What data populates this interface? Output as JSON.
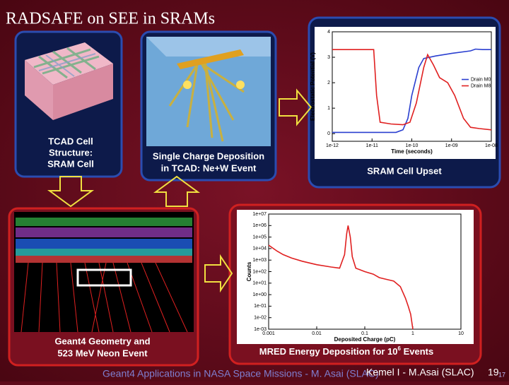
{
  "title": "RADSAFE on SEE in SRAMs",
  "panels": {
    "tcad_cell": {
      "caption": [
        "TCAD Cell",
        "Structure:",
        "SRAM Cell"
      ]
    },
    "charge_deposition": {
      "caption": [
        "Single Charge Deposition",
        "in TCAD: Ne+W Event"
      ]
    },
    "cell_upset": {
      "caption": [
        "SRAM Cell Upset"
      ]
    },
    "geant4_event": {
      "caption": [
        "Geant4 Geometry and",
        "523 MeV Neon Event"
      ]
    },
    "energy_deposition": {
      "caption": [
        "MRED Energy Deposition for 10",
        "6",
        " Events"
      ]
    }
  },
  "upset_chart": {
    "type": "line",
    "y_label": "Electrostatic Potential (V)",
    "x_label": "Time (seconds)",
    "log_x": true,
    "log_y": false,
    "xlim": [
      1e-12,
      1e-08
    ],
    "ylim": [
      -0.3,
      4
    ],
    "xticks": [
      {
        "value": 1e-12,
        "label": "1e-12"
      },
      {
        "value": 1e-11,
        "label": "1e-11"
      },
      {
        "value": 1e-10,
        "label": "1e-10"
      },
      {
        "value": 1e-09,
        "label": "1e-09"
      },
      {
        "value": 1e-08,
        "label": "1e-08"
      }
    ],
    "yticks": [
      0,
      1,
      2,
      3,
      4
    ],
    "legend": "right",
    "series": [
      {
        "name": "Drain M0",
        "color": "#2a3fd0",
        "x": [
          1e-12,
          1e-11,
          4e-11,
          6e-11,
          8e-11,
          1e-10,
          1.5e-10,
          2e-10,
          4e-10,
          1e-09,
          3e-09,
          4e-09,
          6e-09,
          1e-08
        ],
        "values": [
          0.05,
          0.05,
          0.05,
          0.15,
          0.6,
          1.5,
          2.6,
          2.95,
          3.05,
          3.15,
          3.25,
          3.32,
          3.3,
          3.3
        ]
      },
      {
        "name": "Drain M8",
        "color": "#e02020",
        "x": [
          1e-12,
          1.1e-11,
          1.3e-11,
          1.6e-11,
          3e-11,
          6e-11,
          9e-11,
          1.3e-10,
          2e-10,
          2.5e-10,
          3.5e-10,
          5e-10,
          8e-10,
          1.2e-09,
          2e-09,
          3e-09,
          5e-09,
          1e-08
        ],
        "values": [
          3.3,
          3.3,
          1.5,
          0.45,
          0.38,
          0.35,
          0.45,
          1.2,
          2.6,
          3.1,
          2.7,
          2.2,
          2.0,
          1.5,
          0.6,
          0.25,
          0.2,
          0.15
        ]
      }
    ]
  },
  "edep_chart": {
    "type": "line",
    "y_label": "Counts",
    "x_label": "Deposited Charge (pC)",
    "log_x": true,
    "log_y": true,
    "xlim": [
      0.001,
      10
    ],
    "ylim": [
      0.001,
      10000000
    ],
    "xticks": [
      0.001,
      0.01,
      0.1,
      1,
      10
    ],
    "yticks": [
      {
        "value": 0.001,
        "label": "1e-03"
      },
      {
        "value": 0.01,
        "label": "1e-02"
      },
      {
        "value": 0.1,
        "label": "1e-01"
      },
      {
        "value": 1,
        "label": "1e+00"
      },
      {
        "value": 10,
        "label": "1e+01"
      },
      {
        "value": 100,
        "label": "1e+02"
      },
      {
        "value": 1000,
        "label": "1e+03"
      },
      {
        "value": 10000,
        "label": "1e+04"
      },
      {
        "value": 100000,
        "label": "1e+05"
      },
      {
        "value": 1000000,
        "label": "1e+06"
      },
      {
        "value": 10000000,
        "label": "1e+07"
      }
    ],
    "series": [
      {
        "name": null,
        "color": "#e02020",
        "x": [
          0.001,
          0.0015,
          0.002,
          0.003,
          0.005,
          0.01,
          0.02,
          0.03,
          0.038,
          0.042,
          0.045,
          0.05,
          0.055,
          0.065,
          0.1,
          0.15,
          0.2,
          0.3,
          0.4,
          0.55,
          0.7,
          0.8,
          0.9,
          1
        ],
        "values": [
          20000,
          6000,
          3000,
          1500,
          800,
          400,
          250,
          200,
          3000,
          200000,
          1000000,
          100000,
          2000,
          200,
          100,
          60,
          30,
          20,
          15,
          5,
          0.5,
          0.1,
          0.02,
          0.001
        ]
      }
    ]
  },
  "footer": {
    "text": "Geant4 Applications in NASA Space Missions - M. Asai (SLAC)",
    "credit": "Kemel I - M.Asai (SLAC)",
    "page": "19",
    "page_small": "17"
  }
}
